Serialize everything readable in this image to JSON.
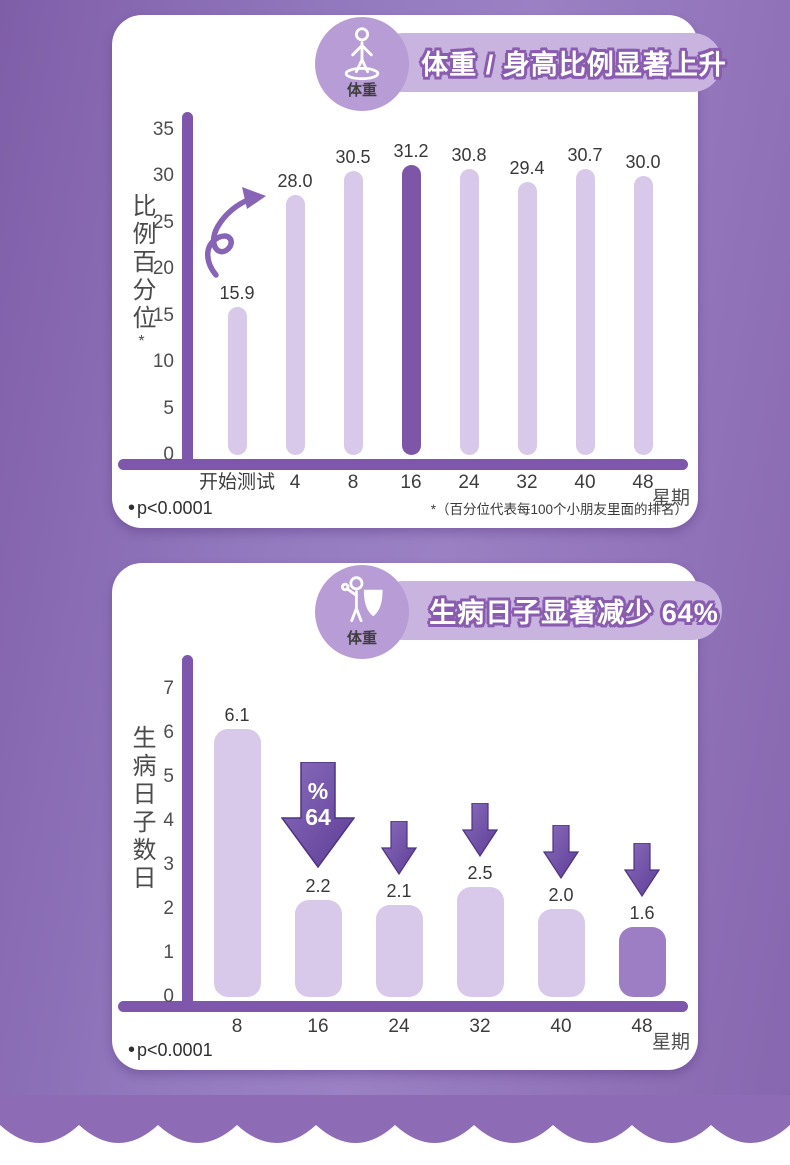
{
  "page": {
    "background_color": "#8d6cb5",
    "card_color": "#ffffff",
    "banner_color": "#c9b4df",
    "title_outline_color": "#8a5cb0"
  },
  "cards": [
    {
      "icon_label": "体重",
      "icon": "person-height-icon",
      "footnote_bullet": "•",
      "footnote_left": "p<0.0001",
      "footnote_right": "*（百分位代表每100个小朋友里面的排名）",
      "chart_data": {
        "type": "bar",
        "title": "体重 / 身高比例显著上升",
        "categories": [
          "开始测试",
          "4",
          "8",
          "16",
          "24",
          "32",
          "40",
          "48"
        ],
        "values": [
          15.9,
          28.0,
          30.5,
          31.2,
          30.8,
          29.4,
          30.7,
          30.0
        ],
        "value_labels": [
          "15.9",
          "28.0",
          "30.5",
          "31.2",
          "30.8",
          "29.4",
          "30.7",
          "30.0"
        ],
        "ylabel": "比例百分位",
        "ylabel_note": "*",
        "xlabel": "星期",
        "ylim": [
          0,
          35
        ],
        "yticks": [
          0,
          5,
          10,
          15,
          20,
          25,
          30,
          35
        ],
        "grid": false,
        "legend": false,
        "highlight_index": 3,
        "bar_color": "#d8c9ea",
        "highlight_color": "#7d56a8",
        "axis_color": "#7e57ad",
        "annotation_squiggle": "upward-trend-squiggle-arrow"
      }
    },
    {
      "icon_label": "体重",
      "icon": "person-shield-icon",
      "footnote_bullet": "•",
      "footnote_left": "p<0.0001",
      "footnote_right": "",
      "chart_data": {
        "type": "bar",
        "title": "生病日子显著减少 64%",
        "categories": [
          "8",
          "16",
          "24",
          "32",
          "40",
          "48"
        ],
        "values": [
          6.1,
          2.2,
          2.1,
          2.5,
          2.0,
          1.6
        ],
        "value_labels": [
          "6.1",
          "2.2",
          "2.1",
          "2.5",
          "2.0",
          "1.6"
        ],
        "ylabel": "生病日子数日",
        "ylabel_note": "",
        "xlabel": "星期",
        "ylim": [
          0,
          7
        ],
        "yticks": [
          0,
          1,
          2,
          3,
          4,
          5,
          6,
          7
        ],
        "grid": false,
        "legend": false,
        "highlight_index": 5,
        "bar_color": "#d8c9ea",
        "highlight_color": "#9d7ec4",
        "axis_color": "#7e57ad",
        "big_arrow": {
          "index": 1,
          "lines": [
            "%",
            "64"
          ]
        },
        "small_arrow_indices": [
          2,
          3,
          4,
          5
        ],
        "arrow_color_light": "#8a6cbb",
        "arrow_color_dark": "#5d3e97"
      }
    }
  ]
}
